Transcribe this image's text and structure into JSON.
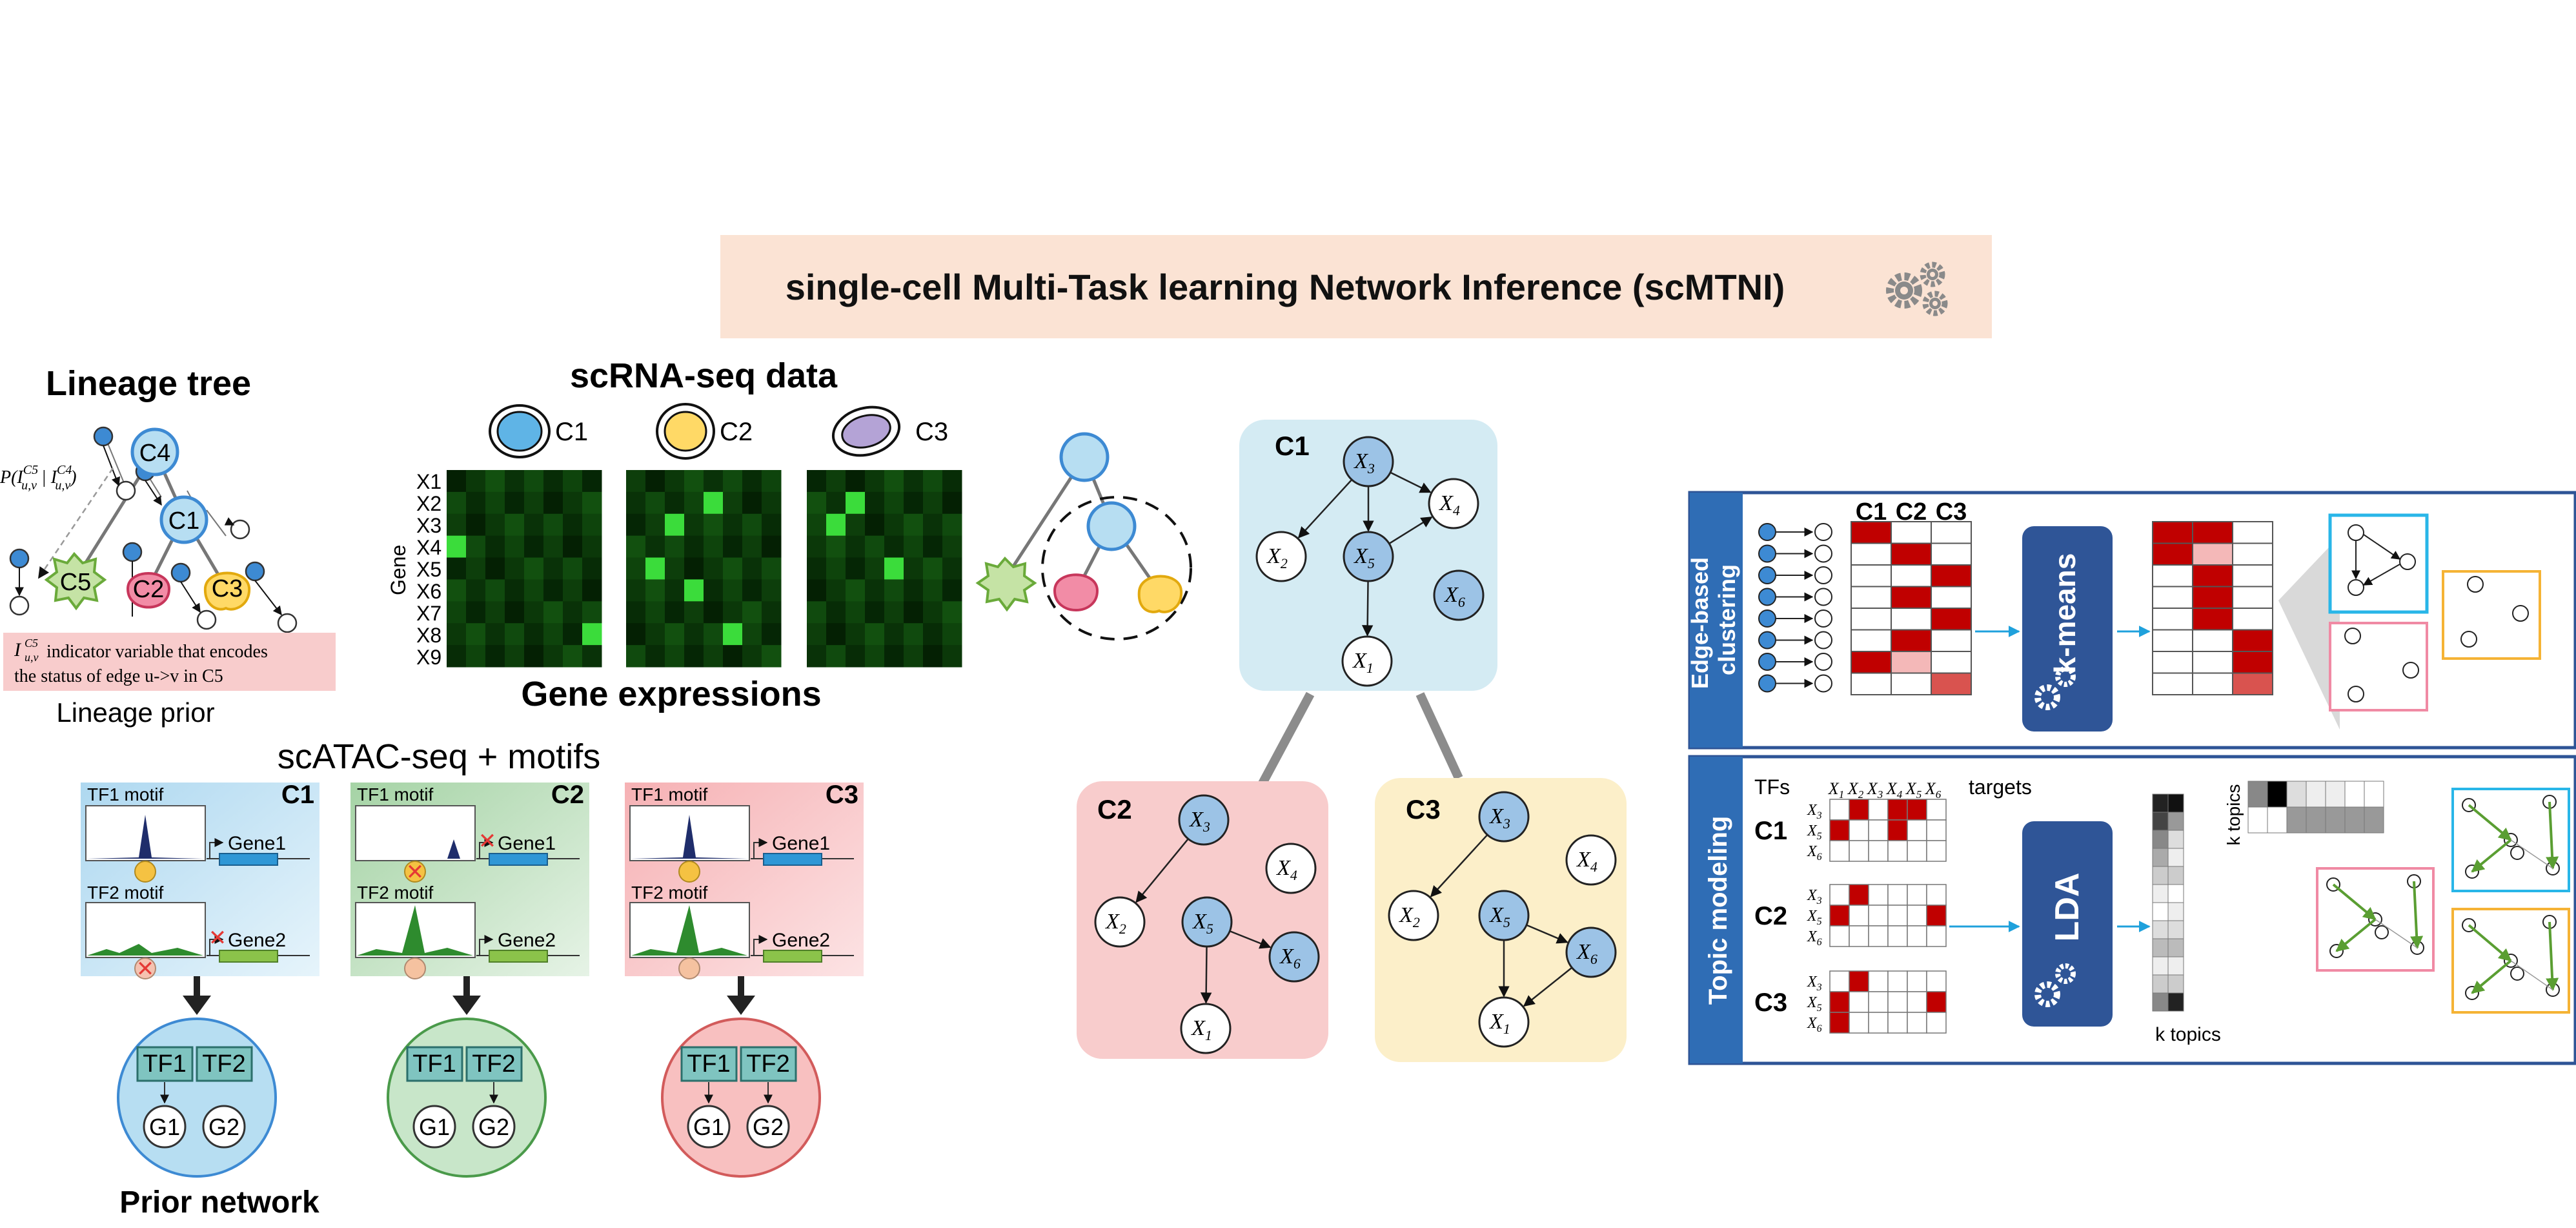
{
  "title": "single-cell Multi-Task learning Network Inference (scMTNI)",
  "lineage": {
    "heading": "Lineage tree",
    "caption": "Lineage prior",
    "formula": "P(I^C5_u,v | I^C4_u,v)",
    "node_labels": [
      "C4",
      "C1",
      "C5",
      "C2",
      "C3"
    ],
    "indicator_note_line1": "indicator variable that encodes",
    "indicator_note_line2": "the status of edge u->v in C5",
    "indicator_symbol": "I"
  },
  "scrna": {
    "heading": "scRNA-seq data",
    "caption": "Gene expressions",
    "axis_label": "Gene",
    "cells": [
      "C1",
      "C2",
      "C3"
    ],
    "genes": [
      "X1",
      "X2",
      "X3",
      "X4",
      "X5",
      "X6",
      "X7",
      "X8",
      "X9"
    ]
  },
  "scatac": {
    "heading": "scATAC-seq + motifs",
    "panels": [
      {
        "label": "C1",
        "tf1": "TF1 motif",
        "tf2": "TF2 motif",
        "gene1": "Gene1",
        "gene2": "Gene2"
      },
      {
        "label": "C2",
        "tf1": "TF1 motif",
        "tf2": "TF2 motif",
        "gene1": "Gene1",
        "gene2": "Gene2"
      },
      {
        "label": "C3",
        "tf1": "TF1 motif",
        "tf2": "TF2 motif",
        "gene1": "Gene1",
        "gene2": "Gene2"
      }
    ],
    "prior_caption": "Prior network",
    "tf_labels": [
      "TF1",
      "TF2"
    ],
    "gene_labels": [
      "G1",
      "G2"
    ]
  },
  "networks": {
    "c1": {
      "label": "C1"
    },
    "c2": {
      "label": "C2"
    },
    "c3": {
      "label": "C3"
    },
    "node_names": [
      "X3",
      "X4",
      "X2",
      "X5",
      "X6",
      "X1"
    ]
  },
  "edge_clustering": {
    "side_label": "Edge-based clustering",
    "columns": [
      "C1",
      "C2",
      "C3"
    ],
    "method": "k-means"
  },
  "topic_modeling": {
    "side_label": "Topic modeling",
    "tfs_label": "TFs",
    "targets_label": "targets",
    "col_labels": [
      "X1",
      "X2",
      "X3",
      "X4",
      "X5",
      "X6"
    ],
    "row_labels": [
      "X3",
      "X5",
      "X6"
    ],
    "cells": [
      "C1",
      "C2",
      "C3"
    ],
    "method": "LDA",
    "k_topics_vertical": "k topics",
    "k_topics_bottom": "k topics"
  },
  "colors": {
    "banner": "#fbe3d4",
    "c1": "#d4ebf3",
    "c2": "#f8cccc",
    "c3": "#fcefc9",
    "node_blue": "#9cc3e6",
    "dark_red": "#c00000",
    "method_box": "#2f5597",
    "frame_blue": "#2e5496"
  }
}
